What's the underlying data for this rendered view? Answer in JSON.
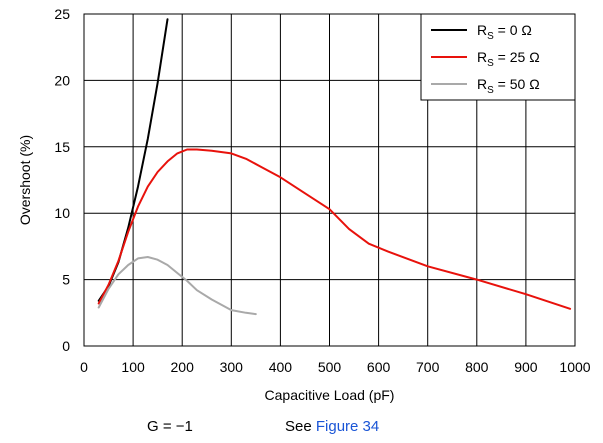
{
  "chart_data": {
    "type": "line",
    "title": "",
    "xlabel": "Capacitive Load (pF)",
    "ylabel": "Overshoot (%)",
    "xlim": [
      0,
      1000
    ],
    "ylim": [
      0,
      25
    ],
    "x_ticks": [
      0,
      100,
      200,
      300,
      400,
      500,
      600,
      700,
      800,
      900,
      1000
    ],
    "y_ticks": [
      0,
      5,
      10,
      15,
      20,
      25
    ],
    "grid": true,
    "legend_position": "top-right",
    "series": [
      {
        "name_main": "R",
        "name_sub": "S",
        "name_rest": " = 0 Ω",
        "color": "#000000",
        "x": [
          30,
          50,
          70,
          90,
          110,
          130,
          150,
          170
        ],
        "y": [
          3.4,
          4.5,
          6.3,
          8.9,
          12.0,
          15.6,
          19.8,
          24.6
        ]
      },
      {
        "name_main": "R",
        "name_sub": "S",
        "name_rest": " = 25 Ω",
        "color": "#e8120c",
        "x": [
          30,
          50,
          70,
          90,
          110,
          130,
          150,
          170,
          190,
          210,
          230,
          260,
          300,
          330,
          360,
          400,
          450,
          500,
          540,
          580,
          620,
          700,
          800,
          900,
          990
        ],
        "y": [
          3.2,
          4.6,
          6.4,
          8.6,
          10.5,
          12.0,
          13.1,
          13.9,
          14.5,
          14.8,
          14.8,
          14.7,
          14.5,
          14.1,
          13.5,
          12.7,
          11.5,
          10.3,
          8.8,
          7.7,
          7.1,
          6.0,
          5.0,
          3.9,
          2.8
        ]
      },
      {
        "name_main": "R",
        "name_sub": "S",
        "name_rest": " = 50 Ω",
        "color": "#a9a9a9",
        "x": [
          30,
          50,
          70,
          90,
          110,
          130,
          150,
          170,
          190,
          210,
          230,
          260,
          300,
          330,
          350
        ],
        "y": [
          2.9,
          4.3,
          5.4,
          6.1,
          6.6,
          6.7,
          6.5,
          6.1,
          5.5,
          4.9,
          4.2,
          3.5,
          2.7,
          2.5,
          2.4
        ]
      }
    ]
  },
  "notes": {
    "gain": "G = −1",
    "see_prefix": "See ",
    "see_link": "Figure 34"
  }
}
